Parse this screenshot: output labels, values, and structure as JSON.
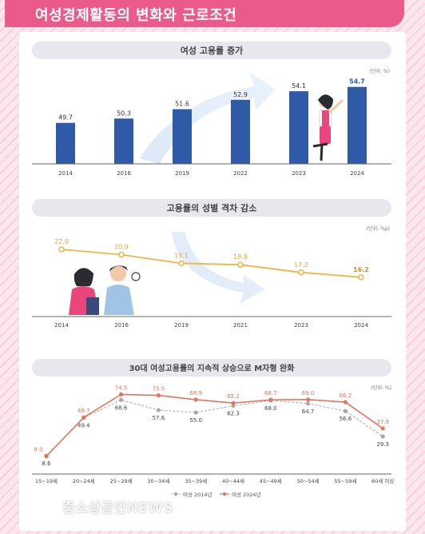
{
  "header": {
    "title": "여성경제활동의 변화와 근로조건"
  },
  "charts": {
    "employment": {
      "title": "여성 고용률 증가",
      "unit": "(단위: %)"
    },
    "gap": {
      "title": "고용률의 성별 격차 감소",
      "unit": "(단위: %p)"
    },
    "age": {
      "title": "30대 여성고용률의 지속적 상승으로 M자형 완화",
      "unit": "(단위: %)"
    }
  },
  "watermark": {
    "text": "중소상공인NEWS"
  },
  "chart_data": [
    {
      "type": "bar",
      "title": "여성 고용률 증가",
      "categories": [
        "2014",
        "2016",
        "2019",
        "2022",
        "2023",
        "2024"
      ],
      "values": [
        49.7,
        50.3,
        51.6,
        52.9,
        54.1,
        54.7
      ],
      "unit": "(단위: %)",
      "color": "#2f5aa8",
      "ylim": [
        44,
        56
      ]
    },
    {
      "type": "line",
      "title": "고용률의 성별 격차 감소",
      "categories": [
        "2014",
        "2016",
        "2019",
        "2021",
        "2023",
        "2024"
      ],
      "values": [
        22.0,
        20.9,
        19.1,
        18.8,
        17.2,
        16.2
      ],
      "unit": "(단위: %p)",
      "color": "#f0b440",
      "ylim": [
        10,
        24
      ]
    },
    {
      "type": "line",
      "title": "30대 여성고용률의 지속적 상승으로 M자형 완화",
      "categories": [
        "15~19세",
        "20~24세",
        "25~29세",
        "30~34세",
        "35~39세",
        "40~44세",
        "45~49세",
        "50~54세",
        "55~59세",
        "60세 이상"
      ],
      "series": [
        {
          "name": "여성 2014년",
          "values": [
            8.6,
            49.4,
            68.6,
            57.6,
            55.0,
            62.3,
            68.0,
            64.7,
            56.6,
            29.3
          ],
          "color": "#a8a8a8"
        },
        {
          "name": "여성 2024년",
          "values": [
            8.0,
            49.7,
            74.5,
            73.5,
            68.9,
            65.2,
            68.7,
            69.0,
            66.2,
            37.9
          ],
          "color": "#e8735a"
        }
      ],
      "unit": "(단위: %)",
      "ylim": [
        0,
        80
      ]
    }
  ]
}
